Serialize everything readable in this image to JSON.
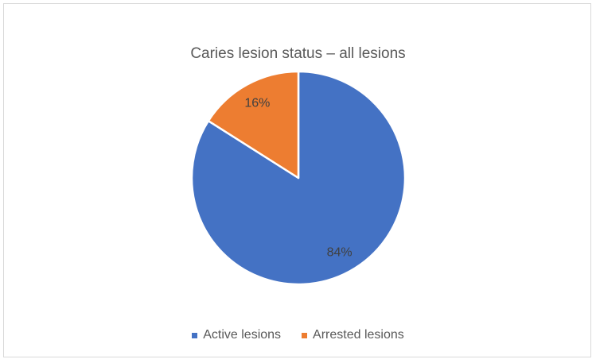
{
  "chart_data": {
    "type": "pie",
    "title": "Caries lesion status – all lesions",
    "categories": [
      "Active lesions",
      "Arrested lesions"
    ],
    "values": [
      84,
      16
    ],
    "labels": [
      "84%",
      "16%"
    ],
    "colors": [
      "#4472C4",
      "#ED7D31"
    ],
    "legend_position": "bottom"
  }
}
